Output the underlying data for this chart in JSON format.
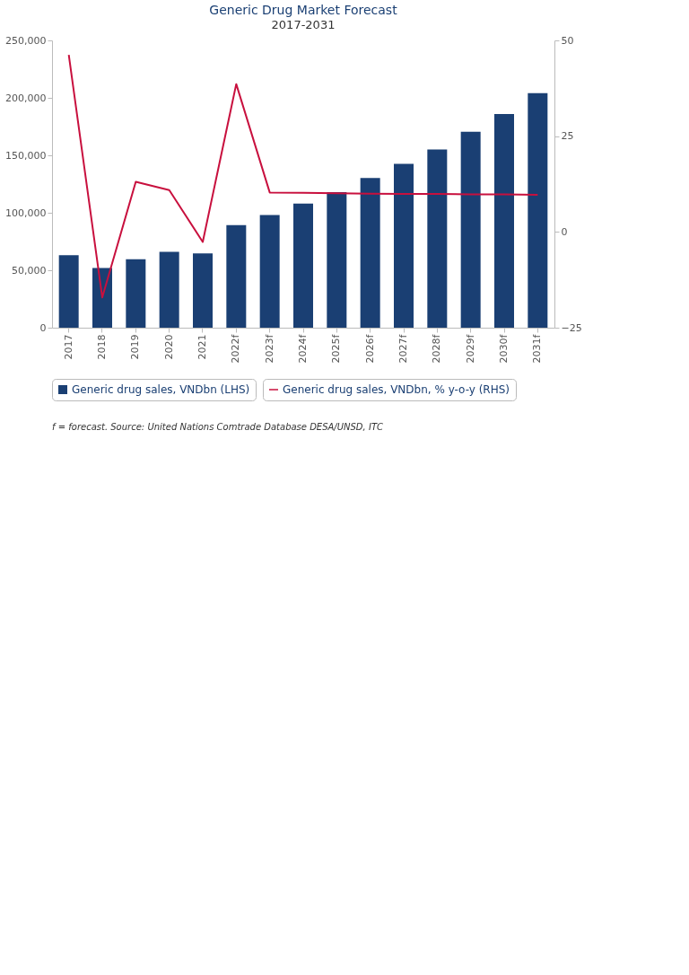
{
  "chart_data": {
    "type": "bar",
    "title": "Generic Drug Market Forecast",
    "subtitle": "2017-2031",
    "categories": [
      "2017",
      "2018",
      "2019",
      "2020",
      "2021",
      "2022f",
      "2023f",
      "2024f",
      "2025f",
      "2026f",
      "2027f",
      "2028f",
      "2029f",
      "2030f",
      "2031f"
    ],
    "series": [
      {
        "name": "Generic drug sales, VNDbn (LHS)",
        "color": "#1a3f73",
        "values": [
          63000,
          52000,
          59500,
          66000,
          64700,
          89300,
          98000,
          108000,
          118000,
          130300,
          142500,
          155000,
          170500,
          186000,
          204100
        ]
      },
      {
        "name": "Generic drug sales, VNDbn, % y-o-y (RHS)",
        "type": "line",
        "axis": "y2",
        "color": "#c8103e",
        "values": [
          46.2,
          -17.1,
          13.1,
          10.9,
          -2.6,
          38.6,
          10.3,
          10.2,
          10.1,
          10.0,
          9.9,
          9.9,
          9.8,
          9.8,
          9.7
        ]
      }
    ],
    "ylim": [
      0,
      250000
    ],
    "yticks": [
      {
        "value": 0,
        "label": "0"
      },
      {
        "value": 50000,
        "label": "50,000"
      },
      {
        "value": 100000,
        "label": "100,000"
      },
      {
        "value": 150000,
        "label": "150,000"
      },
      {
        "value": 200000,
        "label": "200,000"
      },
      {
        "value": 250000,
        "label": "250,000"
      }
    ],
    "y2lim": [
      -25,
      50
    ],
    "y2ticks": [
      -25,
      0,
      25,
      50
    ],
    "grid": false,
    "legend": "bottom",
    "line_style": "solid",
    "marker": "none",
    "annotations": [
      "f = forecast. Source: United Nations Comtrade Database DESA/UNSD, ITC"
    ]
  }
}
